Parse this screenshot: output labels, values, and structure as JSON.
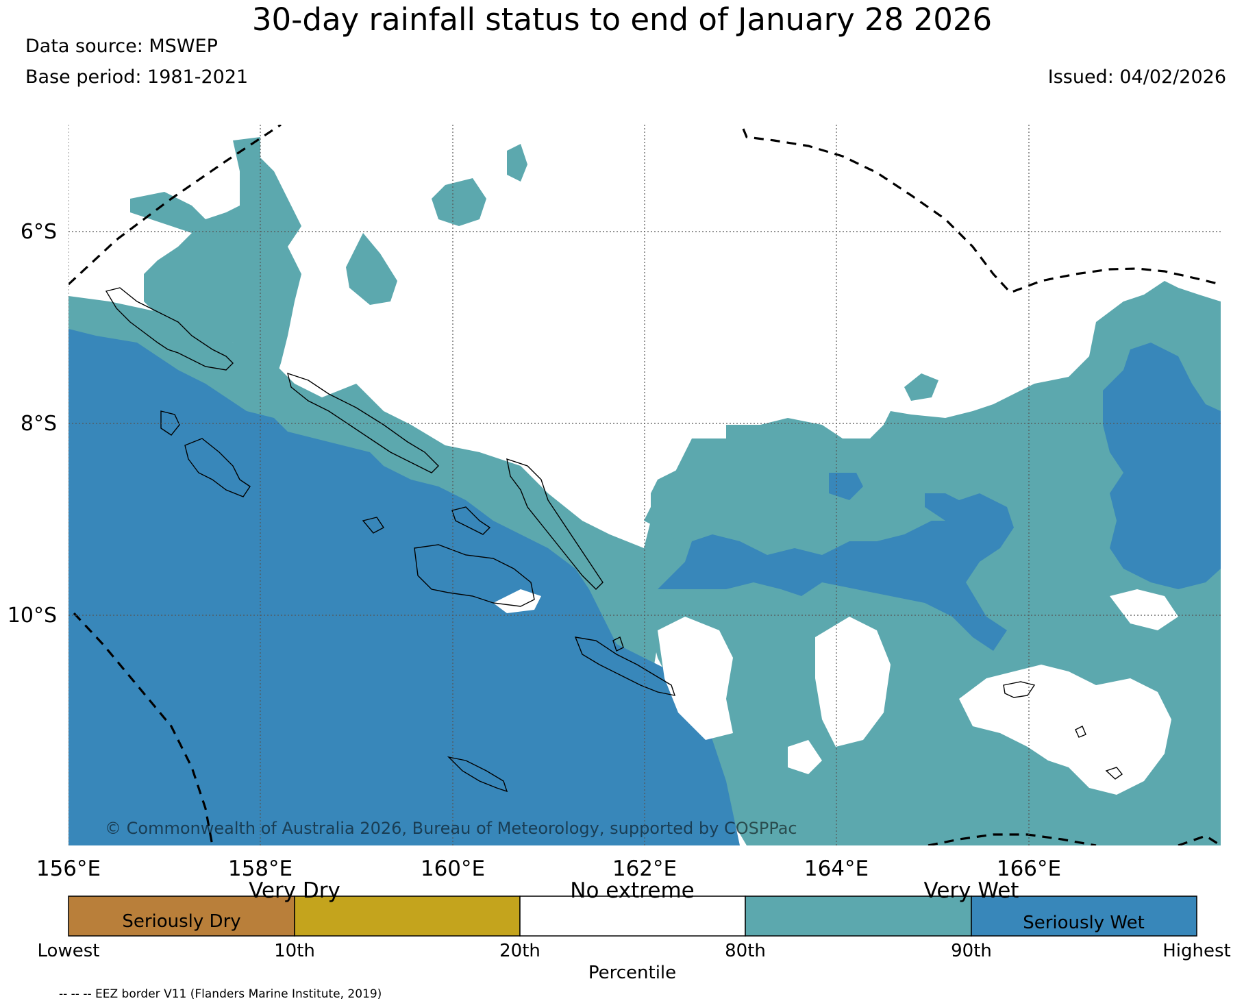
{
  "title": "30-day rainfall status to end of January 28 2026",
  "data_source": "Data source: MSWEP",
  "base_period": "Base period: 1981-2021",
  "issued": "Issued: 04/02/2026",
  "copyright": "© Commonwealth of Australia 2026, Bureau of Meteorology, supported by COSPPac",
  "map": {
    "lon_labels": [
      "156°E",
      "158°E",
      "160°E",
      "162°E",
      "164°E",
      "166°E"
    ],
    "lat_labels": [
      "6°S",
      "8°S",
      "10°S"
    ]
  },
  "legend": {
    "categories": [
      {
        "label": "Seriously Dry",
        "color": "#b97f3a"
      },
      {
        "label": "",
        "color": "#c4a41d"
      },
      {
        "label": "",
        "color": "#ffffff"
      },
      {
        "label": "",
        "color": "#5ca8ae"
      },
      {
        "label": "Seriously Wet",
        "color": "#3887ba"
      }
    ],
    "top_labels": [
      "Very Dry",
      "No extreme",
      "Very Wet"
    ],
    "tick_labels": [
      "Lowest",
      "10th",
      "20th",
      "80th",
      "90th",
      "Highest"
    ],
    "axis_label": "Percentile"
  },
  "footer": "-- -- -- EEZ border V11 (Flanders Marine Institute, 2019)",
  "colors": {
    "very_wet": "#5ca8ae",
    "seriously_wet": "#3887ba",
    "no_extreme": "#ffffff"
  }
}
